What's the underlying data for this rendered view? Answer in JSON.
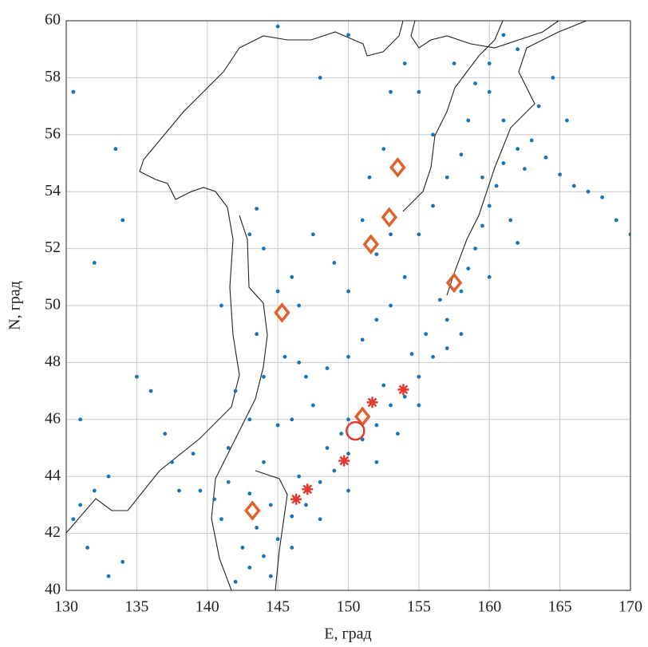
{
  "chart_data": {
    "type": "scatter",
    "xlabel": "E, град",
    "ylabel": "N, град",
    "xlim": [
      130,
      170
    ],
    "ylim": [
      40,
      60
    ],
    "xticks": [
      130,
      135,
      140,
      145,
      150,
      155,
      160,
      165,
      170
    ],
    "yticks": [
      40,
      42,
      44,
      46,
      48,
      50,
      52,
      54,
      56,
      58,
      60
    ],
    "grid": true,
    "series": [
      {
        "color": "#1a73b8",
        "marker": "dot",
        "x": [
          142,
          143,
          142.5,
          144,
          145,
          143.5,
          141,
          140.5,
          139.5,
          141.5,
          143,
          144.5,
          146,
          147,
          146.5,
          148,
          149,
          148.5,
          150,
          151,
          150,
          149.5,
          152,
          153,
          152.5,
          154,
          155,
          154.5,
          156,
          155.5,
          157,
          156.5,
          158,
          158.5,
          159,
          159.5,
          160,
          160.5,
          161,
          162,
          163,
          162.5,
          164,
          165,
          166,
          167,
          168,
          169,
          170,
          161.5,
          162,
          160,
          158,
          157,
          155,
          153.5,
          152,
          150,
          148,
          146,
          144.5,
          147.5,
          146,
          145,
          147,
          146.5,
          148.5,
          150,
          151,
          152,
          153,
          154,
          153,
          152,
          155,
          156,
          157,
          158,
          158.5,
          159,
          160,
          161,
          162,
          157.5,
          155,
          156,
          143,
          142,
          144,
          145.5,
          143.5,
          144,
          143.5,
          143,
          141,
          136,
          135,
          133,
          132,
          131,
          130.5,
          131.5,
          133,
          134,
          137.5,
          138,
          131,
          132,
          130.5,
          133.5,
          134,
          145,
          148,
          150,
          144,
          141.5,
          139,
          137,
          145,
          146,
          146.5,
          147.5,
          149,
          150,
          151,
          151.5,
          152.5,
          153,
          154,
          165.5,
          163.5,
          164.5,
          159.5,
          161,
          160
        ],
        "values": [
          40.3,
          40.8,
          41.5,
          41.2,
          41.8,
          42.2,
          42.5,
          43.2,
          43.5,
          43.8,
          43.4,
          43.0,
          42.6,
          43.0,
          44.0,
          43.8,
          44.2,
          45.0,
          44.8,
          45.3,
          46.0,
          45.5,
          45.8,
          46.5,
          47.2,
          46.8,
          47.5,
          48.3,
          48.2,
          49.0,
          49.5,
          50.2,
          50.5,
          51.3,
          52.0,
          52.8,
          53.5,
          54.2,
          55.0,
          55.5,
          55.8,
          54.8,
          55.2,
          54.6,
          54.2,
          54.0,
          53.8,
          53.0,
          52.5,
          53.0,
          52.2,
          51.0,
          49.0,
          48.5,
          46.5,
          45.5,
          44.5,
          43.5,
          42.5,
          41.5,
          40.5,
          46.5,
          46.0,
          45.8,
          47.5,
          48.0,
          47.8,
          48.2,
          48.8,
          49.5,
          50.0,
          51.0,
          52.5,
          51.8,
          52.5,
          53.5,
          54.5,
          55.3,
          56.5,
          57.8,
          58.5,
          59.5,
          59.0,
          58.5,
          57.5,
          56.0,
          46.0,
          47.0,
          47.5,
          48.2,
          49.0,
          52.0,
          53.4,
          52.5,
          50.0,
          47.0,
          47.5,
          44.0,
          43.5,
          43.0,
          42.5,
          41.5,
          40.5,
          41.0,
          44.5,
          43.5,
          46.0,
          51.5,
          57.5,
          55.5,
          53.0,
          59.8,
          58.0,
          59.5,
          44.5,
          45.0,
          44.8,
          45.5,
          50.5,
          51.0,
          50.0,
          52.5,
          51.5,
          50.5,
          53.0,
          54.5,
          55.5,
          57.5,
          58.5,
          56.5,
          57.0,
          58.0,
          54.5,
          56.5,
          57.5
        ]
      },
      {
        "color": "#e0622a",
        "marker": "diamond",
        "x": [
          143.2,
          145.3,
          151.6,
          152.9,
          153.5,
          157.5,
          151.0
        ],
        "values": [
          42.8,
          49.75,
          52.15,
          53.1,
          54.85,
          50.8,
          46.1
        ]
      },
      {
        "color": "#e23a2e",
        "marker": "star",
        "x": [
          146.3,
          147.1,
          149.7,
          151.7,
          153.9
        ],
        "values": [
          43.2,
          43.55,
          44.55,
          46.6,
          47.05
        ]
      },
      {
        "color": "#e23a2e",
        "marker": "circle",
        "x": [
          150.5
        ],
        "values": [
          45.6
        ]
      }
    ]
  }
}
